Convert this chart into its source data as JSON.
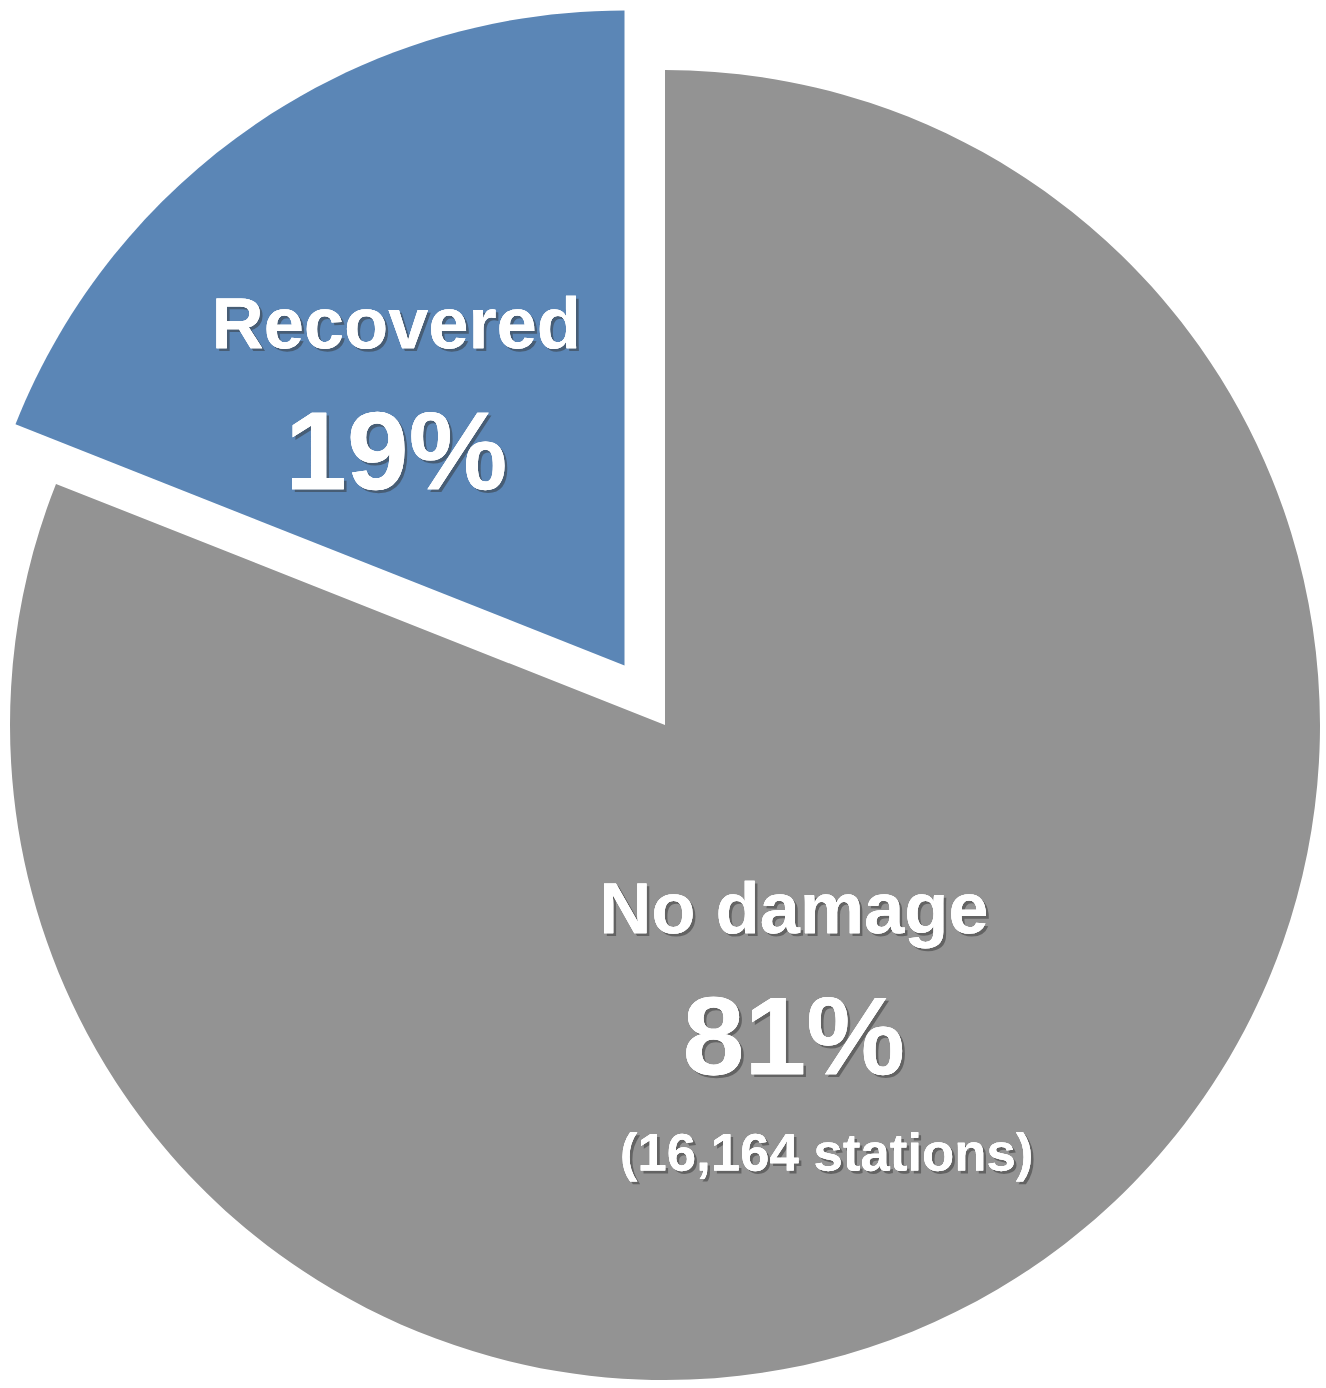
{
  "chart_data": {
    "type": "pie",
    "categories": [
      "Recovered",
      "No damage"
    ],
    "values": [
      19,
      81
    ],
    "colors": [
      "#5b86b6",
      "#939393"
    ],
    "value_labels": [
      "19%",
      "81%"
    ],
    "annotations": [
      "(16,164 stations)"
    ]
  }
}
